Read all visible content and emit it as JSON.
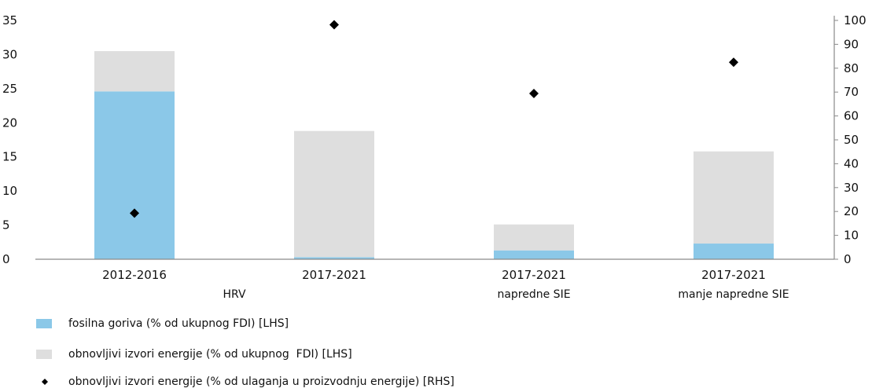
{
  "chart_data": {
    "type": "bar",
    "stacked": true,
    "categories": [
      "2012-2016",
      "2017-2021",
      "2017-2021",
      "2017-2021"
    ],
    "group_labels": [
      "HRV",
      "",
      "napredne SIE",
      "manje napredne SIE"
    ],
    "series": [
      {
        "name": "fosilna goriva (% od ukupnog FDI) [LHS]",
        "kind": "bar",
        "axis": "left",
        "color": "#8bc8e8",
        "values": [
          24.6,
          0.3,
          1.3,
          2.3
        ]
      },
      {
        "name": "obnovljivi izvori energije (% od ukupnog  FDI) [LHS]",
        "kind": "bar",
        "axis": "left",
        "color": "#dedede",
        "values": [
          5.9,
          18.5,
          3.8,
          13.5
        ]
      },
      {
        "name": "obnovljivi izvori energije (% od ulaganja u proizvodnju energije) [RHS]",
        "kind": "scatter",
        "marker": "diamond",
        "axis": "right",
        "color": "#000000",
        "values": [
          19.3,
          98.2,
          69.4,
          82.5
        ]
      }
    ],
    "y_left": {
      "range": [
        0,
        35
      ],
      "ticks": [
        0,
        5,
        10,
        15,
        20,
        25,
        30,
        35
      ]
    },
    "y_right": {
      "range": [
        0,
        100
      ],
      "ticks": [
        0,
        10,
        20,
        30,
        40,
        50,
        60,
        70,
        80,
        90,
        100
      ]
    },
    "grid": false,
    "legend_position": "bottom-left",
    "title": "",
    "xlabel": "",
    "ylabel": ""
  }
}
